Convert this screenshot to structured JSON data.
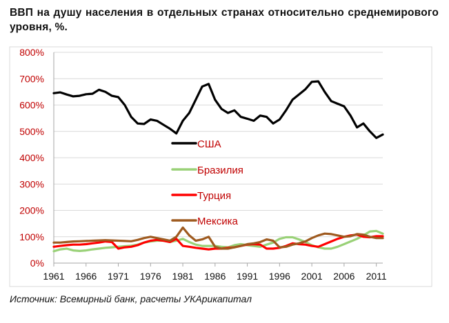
{
  "header": {
    "title": "ВВП на душу населения в отдельных странах относительно среднемирового уровня, %."
  },
  "footer": {
    "source": "Источник: Всемирный банк, расчеты УКАрикапитал"
  },
  "chart_data": {
    "type": "line",
    "title": "ВВП на душу населения в отдельных странах относительно среднемирового уровня, %.",
    "xlabel": "",
    "ylabel": "",
    "xlim": [
      1961,
      2012
    ],
    "ylim": [
      0,
      800
    ],
    "x_ticks": [
      "1961",
      "1966",
      "1971",
      "1976",
      "1981",
      "1986",
      "1991",
      "1996",
      "2001",
      "2006",
      "2011"
    ],
    "y_ticks": [
      "0%",
      "100%",
      "200%",
      "300%",
      "400%",
      "500%",
      "600%",
      "700%",
      "800%"
    ],
    "grid": "horizontal",
    "legend_position": "center",
    "x": [
      1961,
      1962,
      1963,
      1964,
      1965,
      1966,
      1967,
      1968,
      1969,
      1970,
      1971,
      1972,
      1973,
      1974,
      1975,
      1976,
      1977,
      1978,
      1979,
      1980,
      1981,
      1982,
      1983,
      1984,
      1985,
      1986,
      1987,
      1988,
      1989,
      1990,
      1991,
      1992,
      1993,
      1994,
      1995,
      1996,
      1997,
      1998,
      1999,
      2000,
      2001,
      2002,
      2003,
      2004,
      2005,
      2006,
      2007,
      2008,
      2009,
      2010,
      2011,
      2012
    ],
    "series": [
      {
        "name": "США",
        "color": "#000000",
        "values": [
          645,
          648,
          640,
          633,
          635,
          641,
          643,
          658,
          650,
          635,
          630,
          600,
          555,
          530,
          528,
          545,
          540,
          525,
          510,
          492,
          540,
          570,
          620,
          670,
          680,
          620,
          585,
          570,
          580,
          555,
          548,
          540,
          560,
          555,
          530,
          545,
          580,
          620,
          640,
          660,
          688,
          690,
          650,
          615,
          605,
          595,
          560,
          515,
          530,
          500,
          475,
          488
        ]
      },
      {
        "name": "Бразилия",
        "color": "#99d177",
        "values": [
          45,
          52,
          55,
          48,
          46,
          48,
          52,
          55,
          58,
          60,
          62,
          64,
          66,
          70,
          78,
          82,
          85,
          85,
          80,
          85,
          92,
          80,
          70,
          65,
          65,
          65,
          62,
          60,
          68,
          72,
          68,
          65,
          62,
          70,
          78,
          92,
          98,
          98,
          90,
          80,
          68,
          60,
          55,
          55,
          62,
          72,
          82,
          92,
          105,
          120,
          122,
          112
        ]
      },
      {
        "name": "Турция",
        "color": "#ff0000",
        "values": [
          62,
          65,
          68,
          70,
          70,
          72,
          75,
          78,
          82,
          80,
          55,
          60,
          62,
          68,
          78,
          85,
          88,
          85,
          80,
          92,
          65,
          62,
          58,
          55,
          52,
          55,
          55,
          58,
          60,
          65,
          70,
          72,
          70,
          55,
          55,
          58,
          65,
          75,
          72,
          70,
          65,
          62,
          72,
          82,
          92,
          100,
          105,
          108,
          100,
          98,
          102,
          102
        ]
      },
      {
        "name": "Мексика",
        "color": "#9e5a1f",
        "values": [
          78,
          78,
          80,
          82,
          83,
          84,
          85,
          86,
          87,
          86,
          85,
          84,
          83,
          88,
          95,
          100,
          95,
          90,
          85,
          100,
          135,
          105,
          85,
          90,
          100,
          62,
          55,
          55,
          60,
          65,
          72,
          75,
          80,
          90,
          85,
          60,
          62,
          70,
          75,
          82,
          95,
          105,
          112,
          110,
          105,
          100,
          102,
          110,
          108,
          100,
          95,
          95
        ]
      }
    ]
  }
}
